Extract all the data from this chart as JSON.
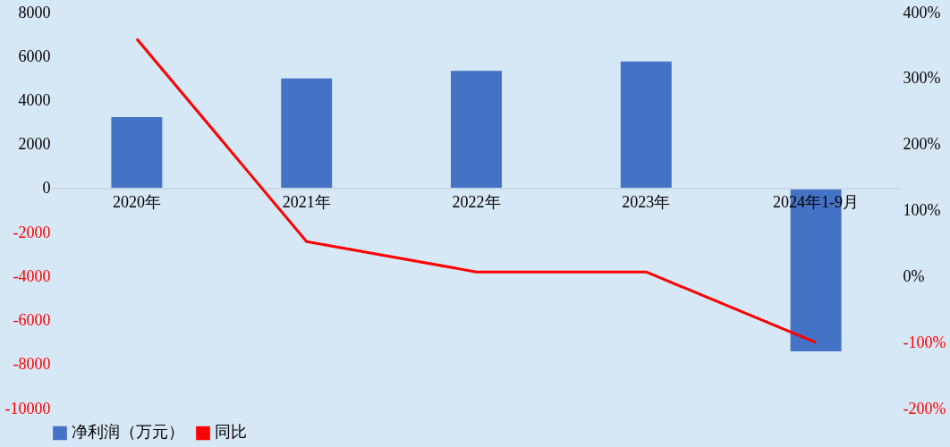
{
  "chart_data": {
    "type": "bar",
    "categories": [
      "2020年",
      "2021年",
      "2022年",
      "2023年",
      "2024年1-9月"
    ],
    "series": [
      {
        "name": "净利润（万元）",
        "color": "#4472c4",
        "values": [
          3250,
          5000,
          5350,
          5780,
          -7400
        ]
      },
      {
        "name": "同比",
        "type": "line",
        "axis": "y2",
        "color": "#ff0000",
        "values": [
          360,
          53,
          7,
          7,
          -100
        ]
      }
    ],
    "ylim": [
      -10000,
      8000
    ],
    "yticks": [
      -10000,
      -8000,
      -6000,
      -4000,
      -2000,
      0,
      2000,
      4000,
      6000,
      8000
    ],
    "y2lim": [
      -200,
      400
    ],
    "y2ticks": [
      {
        "value": -200,
        "label": "-200%"
      },
      {
        "value": -100,
        "label": "-100%"
      },
      {
        "value": 0,
        "label": "0%"
      },
      {
        "value": 100,
        "label": "100%"
      },
      {
        "value": 200,
        "label": "200%"
      },
      {
        "value": 300,
        "label": "300%"
      },
      {
        "value": 400,
        "label": "400%"
      }
    ],
    "grid": false,
    "legend": "bottom",
    "line_style": "solid",
    "marker": "none"
  }
}
